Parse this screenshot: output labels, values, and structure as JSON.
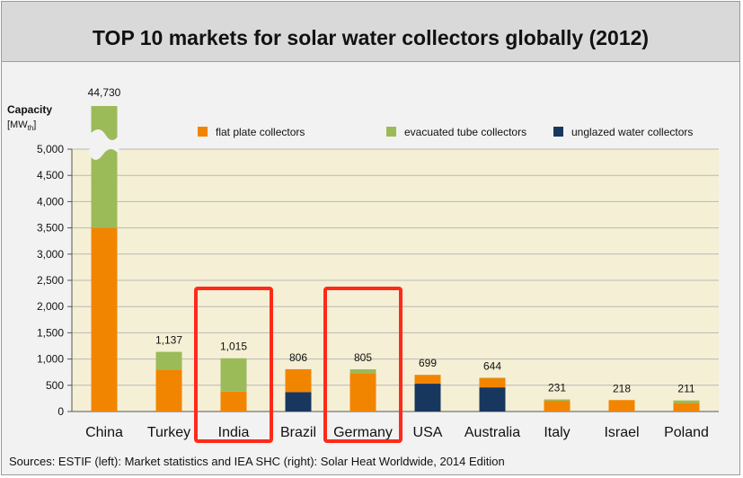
{
  "title": "TOP 10 markets for solar water collectors globally (2012)",
  "source": "Sources: ESTIF (left): Market statistics and IEA SHC (right): Solar Heat Worldwide, 2014 Edition",
  "colors": {
    "flat_plate": "#f28500",
    "evacuated_tube": "#9bbb59",
    "unglazed": "#17375e",
    "plot_background": "#f5f0d5",
    "highlight": "#ff2a1a"
  },
  "chart_data": {
    "type": "bar",
    "stacked": true,
    "title": "TOP 10 markets for solar water collectors globally (2012)",
    "ylabel": "Capacity",
    "yunit": "[MWth]",
    "ylim": [
      0,
      5000
    ],
    "yticks": [
      "0",
      "500",
      "1,000",
      "1,500",
      "2,000",
      "2,500",
      "3,000",
      "3,500",
      "4,000",
      "4,500",
      "5,000"
    ],
    "axis_break": true,
    "legend_position": "top",
    "categories": [
      "China",
      "Turkey",
      "India",
      "Brazil",
      "Germany",
      "USA",
      "Australia",
      "Italy",
      "Israel",
      "Poland"
    ],
    "totals": [
      44730,
      1137,
      1015,
      806,
      805,
      699,
      644,
      231,
      218,
      211
    ],
    "total_labels": [
      "44,730",
      "1,137",
      "1,015",
      "806",
      "805",
      "699",
      "644",
      "231",
      "218",
      "211"
    ],
    "series": [
      {
        "name": "unglazed water collectors",
        "key": "unglazed",
        "values": [
          0,
          0,
          0,
          370,
          0,
          530,
          460,
          0,
          0,
          0
        ]
      },
      {
        "name": "flat plate collectors",
        "key": "flat_plate",
        "values": [
          3500,
          800,
          380,
          436,
          730,
          169,
          174,
          205,
          218,
          161
        ]
      },
      {
        "name": "evacuated tube collectors",
        "key": "evacuated_tube",
        "values": [
          41230,
          337,
          635,
          0,
          75,
          0,
          10,
          26,
          0,
          50
        ]
      }
    ],
    "legend": [
      {
        "label": "flat plate collectors",
        "key": "flat_plate"
      },
      {
        "label": "evacuated tube collectors",
        "key": "evacuated_tube"
      },
      {
        "label": "unglazed water collectors",
        "key": "unglazed"
      }
    ],
    "highlighted_categories": [
      "India",
      "Germany"
    ]
  }
}
